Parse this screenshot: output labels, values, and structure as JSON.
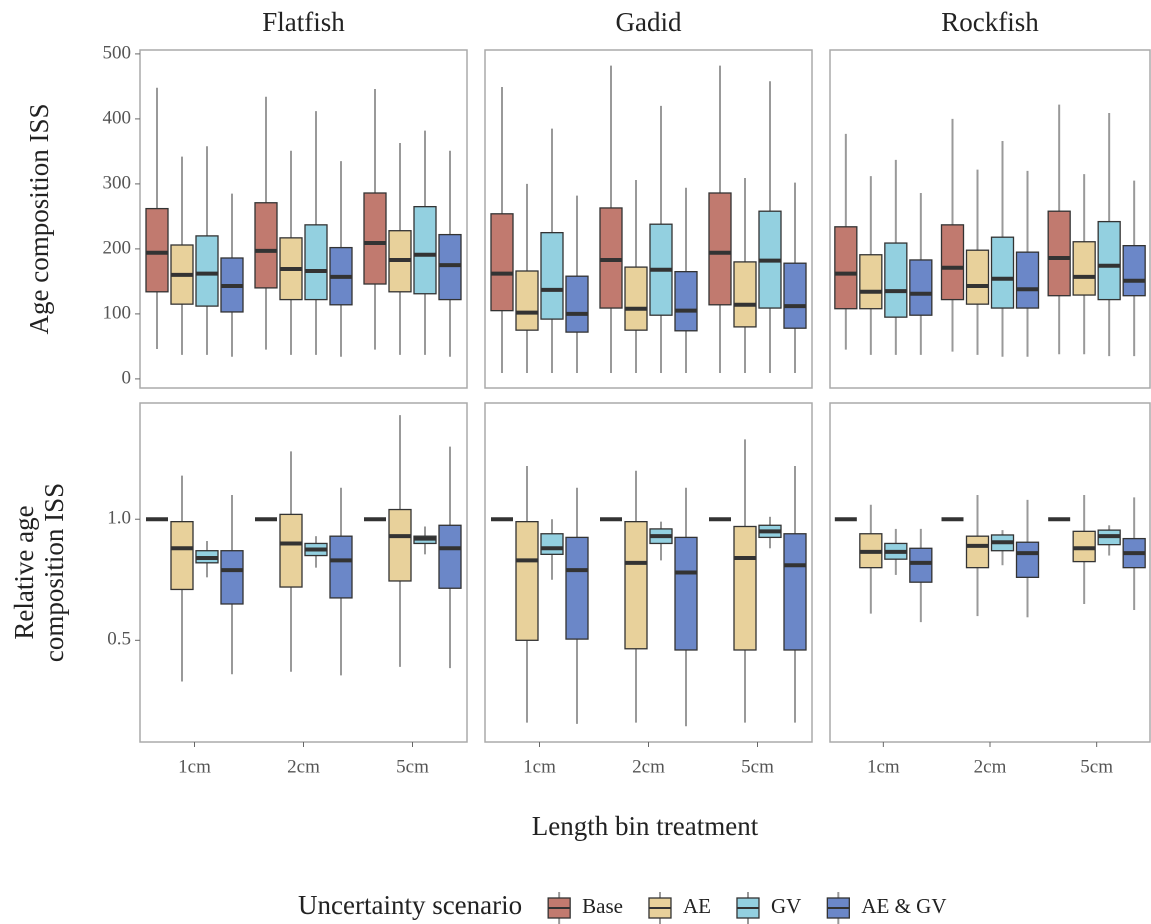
{
  "figure": {
    "xlabel": "Length bin treatment",
    "legend_title": "Uncertainty scenario",
    "legend": [
      {
        "name": "Base",
        "color": "#c17a6f"
      },
      {
        "name": "AE",
        "color": "#e8d19b"
      },
      {
        "name": "GV",
        "color": "#93d0e0"
      },
      {
        "name": "AE & GV",
        "color": "#6b87c8"
      }
    ]
  },
  "chart_data": [
    {
      "type": "box",
      "title": "Flatfish",
      "ylabel": [
        "Age composition ISS"
      ],
      "categories": [
        null,
        null,
        null
      ],
      "ylim": [
        -14,
        506
      ],
      "yticks": [
        0,
        100,
        200,
        300,
        400,
        500
      ],
      "series": [
        {
          "low": [
            46,
            45,
            45
          ],
          "q1": [
            134,
            140,
            146
          ],
          "median": [
            194,
            197,
            209
          ],
          "q3": [
            262,
            271,
            286
          ],
          "high": [
            448,
            434,
            446
          ]
        },
        {
          "low": [
            37,
            37,
            37
          ],
          "q1": [
            115,
            122,
            134
          ],
          "median": [
            160,
            169,
            183
          ],
          "q3": [
            206,
            217,
            228
          ],
          "high": [
            342,
            351,
            363
          ]
        },
        {
          "low": [
            37,
            37,
            37
          ],
          "q1": [
            112,
            122,
            131
          ],
          "median": [
            162,
            166,
            191
          ],
          "q3": [
            220,
            237,
            265
          ],
          "high": [
            358,
            412,
            382
          ]
        },
        {
          "low": [
            34,
            34,
            34
          ],
          "q1": [
            103,
            114,
            122
          ],
          "median": [
            143,
            157,
            175
          ],
          "q3": [
            186,
            202,
            222
          ],
          "high": [
            285,
            335,
            351
          ]
        }
      ]
    },
    {
      "type": "box",
      "title": "Gadid",
      "categories": [
        null,
        null,
        null
      ],
      "ylim": [
        -14,
        506
      ],
      "series": [
        {
          "low": [
            9,
            9,
            9
          ],
          "q1": [
            105,
            109,
            114
          ],
          "median": [
            162,
            183,
            194
          ],
          "q3": [
            254,
            263,
            286
          ],
          "high": [
            449,
            482,
            482
          ]
        },
        {
          "low": [
            9,
            9,
            9
          ],
          "q1": [
            75,
            75,
            80
          ],
          "median": [
            102,
            108,
            114
          ],
          "q3": [
            166,
            172,
            180
          ],
          "high": [
            300,
            306,
            309
          ]
        },
        {
          "low": [
            9,
            9,
            9
          ],
          "q1": [
            92,
            98,
            109
          ],
          "median": [
            137,
            168,
            182
          ],
          "q3": [
            225,
            238,
            258
          ],
          "high": [
            385,
            420,
            458
          ]
        },
        {
          "low": [
            9,
            9,
            9
          ],
          "q1": [
            72,
            74,
            78
          ],
          "median": [
            100,
            105,
            112
          ],
          "q3": [
            158,
            165,
            178
          ],
          "high": [
            282,
            294,
            302
          ]
        }
      ]
    },
    {
      "type": "box",
      "title": "Rockfish",
      "categories": [
        null,
        null,
        null
      ],
      "ylim": [
        -14,
        506
      ],
      "series": [
        {
          "low": [
            45,
            42,
            38
          ],
          "q1": [
            108,
            122,
            128
          ],
          "median": [
            162,
            171,
            186
          ],
          "q3": [
            234,
            237,
            258
          ],
          "high": [
            377,
            400,
            422
          ]
        },
        {
          "low": [
            37,
            37,
            38
          ],
          "q1": [
            108,
            115,
            129
          ],
          "median": [
            134,
            143,
            157
          ],
          "q3": [
            191,
            198,
            211
          ],
          "high": [
            312,
            322,
            315
          ]
        },
        {
          "low": [
            37,
            34,
            35
          ],
          "q1": [
            95,
            109,
            122
          ],
          "median": [
            135,
            154,
            174
          ],
          "q3": [
            209,
            218,
            242
          ],
          "high": [
            337,
            366,
            409
          ]
        },
        {
          "low": [
            37,
            34,
            35
          ],
          "q1": [
            98,
            109,
            128
          ],
          "median": [
            131,
            138,
            151
          ],
          "q3": [
            183,
            195,
            205
          ],
          "high": [
            286,
            320,
            305
          ]
        }
      ]
    },
    {
      "type": "box",
      "ylabel": [
        "Relative age",
        "composition ISS"
      ],
      "categories": [
        "1cm",
        "2cm",
        "5cm"
      ],
      "ylim": [
        0.08,
        1.48
      ],
      "yticks": [
        0.5,
        {
          "value": 1,
          "label": "1.0"
        }
      ],
      "series": [
        {
          "low": [
            1,
            1,
            1
          ],
          "q1": [
            1,
            1,
            1
          ],
          "median": [
            1,
            1,
            1
          ],
          "q3": [
            1,
            1,
            1
          ],
          "high": [
            1,
            1,
            1
          ]
        },
        {
          "low": [
            0.33,
            0.37,
            0.39
          ],
          "q1": [
            0.71,
            0.72,
            0.745
          ],
          "median": [
            0.88,
            0.9,
            0.93
          ],
          "q3": [
            0.99,
            1.02,
            1.04
          ],
          "high": [
            1.18,
            1.28,
            1.43
          ]
        },
        {
          "low": [
            0.76,
            0.8,
            0.855
          ],
          "q1": [
            0.82,
            0.85,
            0.9
          ],
          "median": [
            0.84,
            0.875,
            0.92
          ],
          "q3": [
            0.87,
            0.9,
            0.93
          ],
          "high": [
            0.91,
            0.93,
            0.97
          ]
        },
        {
          "low": [
            0.36,
            0.355,
            0.385
          ],
          "q1": [
            0.65,
            0.675,
            0.715
          ],
          "median": [
            0.79,
            0.83,
            0.88
          ],
          "q3": [
            0.87,
            0.93,
            0.975
          ],
          "high": [
            1.1,
            1.13,
            1.3
          ]
        }
      ]
    },
    {
      "type": "box",
      "categories": [
        "1cm",
        "2cm",
        "5cm"
      ],
      "ylim": [
        0.08,
        1.48
      ],
      "series": [
        {
          "low": [
            1,
            1,
            1
          ],
          "q1": [
            1,
            1,
            1
          ],
          "median": [
            1,
            1,
            1
          ],
          "q3": [
            1,
            1,
            1
          ],
          "high": [
            1,
            1,
            1
          ]
        },
        {
          "low": [
            0.16,
            0.16,
            0.16
          ],
          "q1": [
            0.5,
            0.465,
            0.46
          ],
          "median": [
            0.83,
            0.82,
            0.84
          ],
          "q3": [
            0.99,
            0.99,
            0.97
          ],
          "high": [
            1.22,
            1.2,
            1.33
          ]
        },
        {
          "low": [
            0.75,
            0.83,
            0.88
          ],
          "q1": [
            0.855,
            0.9,
            0.925
          ],
          "median": [
            0.88,
            0.93,
            0.95
          ],
          "q3": [
            0.94,
            0.96,
            0.975
          ],
          "high": [
            1.0,
            0.99,
            1.01
          ]
        },
        {
          "low": [
            0.155,
            0.145,
            0.16
          ],
          "q1": [
            0.505,
            0.46,
            0.46
          ],
          "median": [
            0.79,
            0.78,
            0.81
          ],
          "q3": [
            0.925,
            0.925,
            0.94
          ],
          "high": [
            1.13,
            1.13,
            1.22
          ]
        }
      ]
    },
    {
      "type": "box",
      "categories": [
        "1cm",
        "2cm",
        "5cm"
      ],
      "ylim": [
        0.08,
        1.48
      ],
      "series": [
        {
          "low": [
            1,
            1,
            1
          ],
          "q1": [
            1,
            1,
            1
          ],
          "median": [
            1,
            1,
            1
          ],
          "q3": [
            1,
            1,
            1
          ],
          "high": [
            1,
            1,
            1
          ]
        },
        {
          "low": [
            0.61,
            0.6,
            0.65
          ],
          "q1": [
            0.8,
            0.8,
            0.825
          ],
          "median": [
            0.865,
            0.89,
            0.88
          ],
          "q3": [
            0.94,
            0.93,
            0.95
          ],
          "high": [
            1.06,
            1.1,
            1.1
          ]
        },
        {
          "low": [
            0.77,
            0.81,
            0.85
          ],
          "q1": [
            0.835,
            0.87,
            0.895
          ],
          "median": [
            0.865,
            0.905,
            0.93
          ],
          "q3": [
            0.9,
            0.935,
            0.955
          ],
          "high": [
            0.96,
            0.955,
            0.975
          ]
        },
        {
          "low": [
            0.575,
            0.595,
            0.625
          ],
          "q1": [
            0.74,
            0.76,
            0.8
          ],
          "median": [
            0.82,
            0.86,
            0.86
          ],
          "q3": [
            0.88,
            0.905,
            0.92
          ],
          "high": [
            0.96,
            1.08,
            1.09
          ]
        }
      ]
    }
  ]
}
